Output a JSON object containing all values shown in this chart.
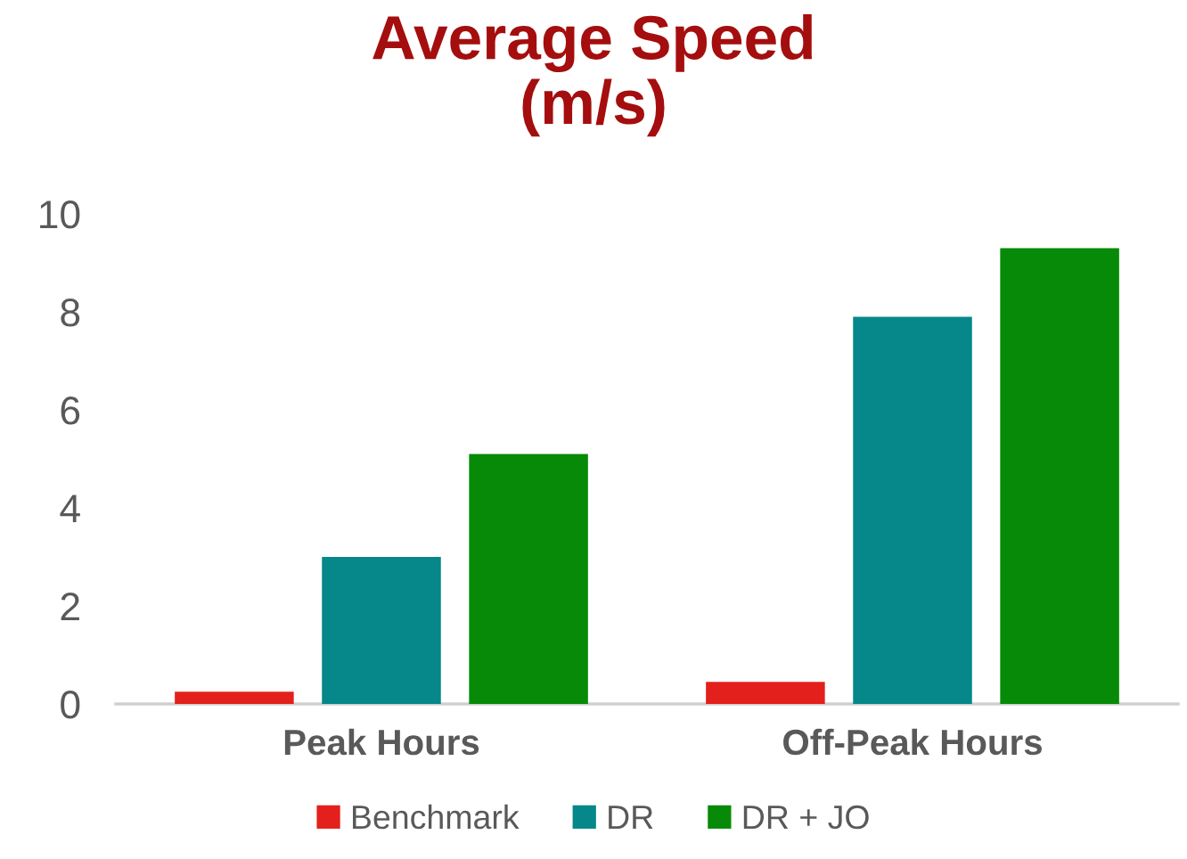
{
  "chart_data": {
    "type": "bar",
    "title": "Average Speed\n(m/s)",
    "categories": [
      "Peak Hours",
      "Off-Peak Hours"
    ],
    "series": [
      {
        "name": "Benchmark",
        "color": "#e3201b",
        "values": [
          0.25,
          0.45
        ]
      },
      {
        "name": "DR",
        "color": "#06878a",
        "values": [
          3.0,
          7.9
        ]
      },
      {
        "name": "DR + JO",
        "color": "#078a08",
        "values": [
          5.1,
          9.3
        ]
      }
    ],
    "ylim": [
      0,
      10
    ],
    "yticks": [
      0,
      2,
      4,
      6,
      8,
      10
    ],
    "grid": false,
    "legend": "bottom"
  }
}
